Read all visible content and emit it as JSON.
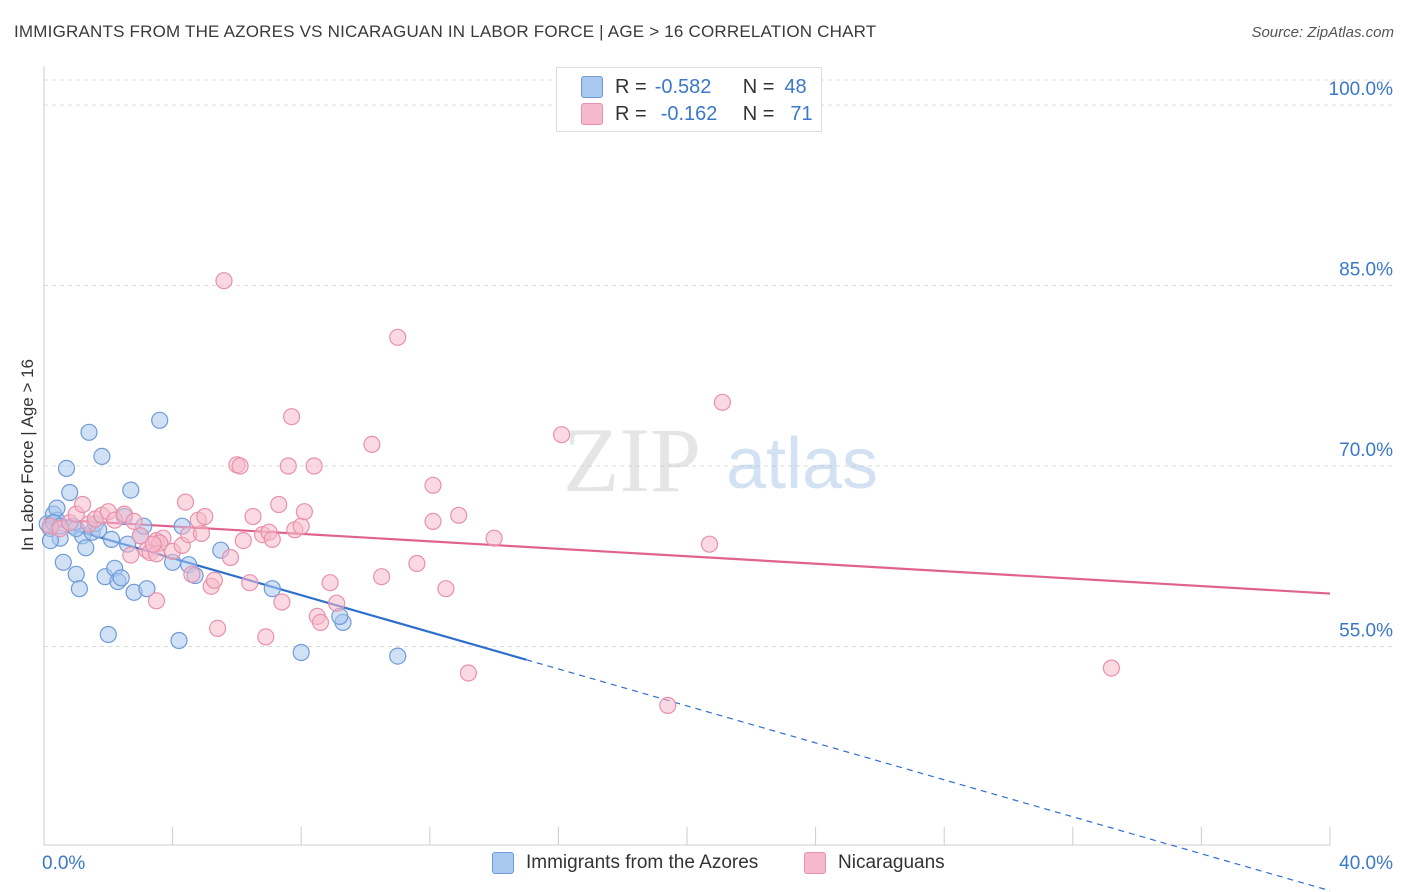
{
  "title": "IMMIGRANTS FROM THE AZORES VS NICARAGUAN IN LABOR FORCE | AGE > 16 CORRELATION CHART",
  "source": "Source: ZipAtlas.com",
  "watermark": {
    "zip": "ZIP",
    "atlas": "atlas"
  },
  "legend": {
    "rows": [
      {
        "r_label": "R =",
        "r_value": "-0.582",
        "n_label": "N =",
        "n_value": "48"
      },
      {
        "r_label": "R =",
        "r_value": "-0.162",
        "n_label": "N =",
        "n_value": "71"
      }
    ]
  },
  "bottom_legend": [
    "Immigrants from the Azores",
    "Nicaraguans"
  ],
  "colors": {
    "blue_fill": "#a9c8ef",
    "blue_stroke": "#6f9bd6",
    "blue_line": "#2f6fcc",
    "pink_fill": "#f6b9cb",
    "pink_stroke": "#e891ad",
    "pink_line": "#e0628e",
    "axis_label": "#3a78c9",
    "grid": "#d9d9d9"
  },
  "chart_data": {
    "type": "scatter",
    "title": "IMMIGRANTS FROM THE AZORES VS NICARAGUAN IN LABOR FORCE | AGE > 16 CORRELATION CHART",
    "xlabel": "",
    "ylabel": "In Labor Force | Age > 16",
    "xlim": [
      0,
      40
    ],
    "ylim": [
      38.5,
      102.5
    ],
    "x_tick_labels": [
      "0.0%",
      "40.0%"
    ],
    "y_ticks": [
      55,
      70,
      85,
      100
    ],
    "y_tick_labels": [
      "55.0%",
      "70.0%",
      "85.0%",
      "100.0%"
    ],
    "grid": true,
    "series": [
      {
        "name": "Immigrants from the Azores",
        "r": -0.582,
        "n": 48,
        "points": [
          [
            0.1,
            65.2
          ],
          [
            0.2,
            64.8
          ],
          [
            0.3,
            66.0
          ],
          [
            0.4,
            65.5
          ],
          [
            0.5,
            64.0
          ],
          [
            0.2,
            63.8
          ],
          [
            0.4,
            66.5
          ],
          [
            0.6,
            62.0
          ],
          [
            0.7,
            69.8
          ],
          [
            0.8,
            67.8
          ],
          [
            0.9,
            65.0
          ],
          [
            1.0,
            61.0
          ],
          [
            1.1,
            59.8
          ],
          [
            1.2,
            64.2
          ],
          [
            1.3,
            63.2
          ],
          [
            1.4,
            72.8
          ],
          [
            1.5,
            64.5
          ],
          [
            1.6,
            65.2
          ],
          [
            1.7,
            64.7
          ],
          [
            1.8,
            70.8
          ],
          [
            1.9,
            60.8
          ],
          [
            2.0,
            56.0
          ],
          [
            2.1,
            63.9
          ],
          [
            2.2,
            61.5
          ],
          [
            2.3,
            60.4
          ],
          [
            2.5,
            65.8
          ],
          [
            2.6,
            63.5
          ],
          [
            2.7,
            68.0
          ],
          [
            2.8,
            59.5
          ],
          [
            3.0,
            64.2
          ],
          [
            3.1,
            65.0
          ],
          [
            3.2,
            59.8
          ],
          [
            3.6,
            73.8
          ],
          [
            4.0,
            62.0
          ],
          [
            4.3,
            65.0
          ],
          [
            4.2,
            55.5
          ],
          [
            4.5,
            61.8
          ],
          [
            4.7,
            60.9
          ],
          [
            5.5,
            63.0
          ],
          [
            7.1,
            59.8
          ],
          [
            8.0,
            54.5
          ],
          [
            9.3,
            57.0
          ],
          [
            9.2,
            57.5
          ],
          [
            11.0,
            54.2
          ],
          [
            0.3,
            65.3
          ],
          [
            0.5,
            65.0
          ],
          [
            2.4,
            60.7
          ],
          [
            1.0,
            64.8
          ]
        ],
        "trend": {
          "x": [
            0,
            15
          ],
          "y": [
            65.4,
            53.9
          ]
        },
        "trend_dashed": {
          "x": [
            15,
            40
          ],
          "y": [
            53.9,
            34.7
          ]
        }
      },
      {
        "name": "Nicaraguans",
        "r": -0.162,
        "n": 71,
        "points": [
          [
            0.2,
            65.0
          ],
          [
            0.5,
            64.8
          ],
          [
            0.8,
            65.3
          ],
          [
            1.0,
            66.0
          ],
          [
            1.2,
            66.8
          ],
          [
            1.4,
            65.2
          ],
          [
            1.6,
            65.6
          ],
          [
            1.8,
            65.9
          ],
          [
            2.0,
            66.2
          ],
          [
            2.2,
            65.5
          ],
          [
            2.5,
            66.0
          ],
          [
            2.8,
            65.4
          ],
          [
            3.0,
            64.2
          ],
          [
            3.2,
            63.0
          ],
          [
            3.5,
            63.8
          ],
          [
            3.7,
            64.0
          ],
          [
            3.3,
            62.8
          ],
          [
            3.6,
            63.6
          ],
          [
            3.5,
            62.7
          ],
          [
            3.4,
            63.5
          ],
          [
            3.5,
            58.8
          ],
          [
            4.0,
            62.9
          ],
          [
            4.3,
            63.4
          ],
          [
            4.4,
            67.0
          ],
          [
            4.5,
            64.3
          ],
          [
            4.6,
            61.0
          ],
          [
            4.9,
            64.4
          ],
          [
            4.8,
            65.5
          ],
          [
            5.0,
            65.8
          ],
          [
            5.2,
            60.0
          ],
          [
            5.3,
            60.5
          ],
          [
            5.4,
            56.5
          ],
          [
            5.6,
            85.4
          ],
          [
            5.8,
            62.4
          ],
          [
            6.0,
            70.1
          ],
          [
            6.1,
            70.0
          ],
          [
            6.2,
            63.8
          ],
          [
            6.4,
            60.3
          ],
          [
            6.5,
            65.8
          ],
          [
            6.8,
            64.3
          ],
          [
            6.9,
            55.8
          ],
          [
            7.0,
            64.5
          ],
          [
            7.1,
            63.9
          ],
          [
            7.3,
            66.8
          ],
          [
            7.4,
            58.7
          ],
          [
            7.6,
            70.0
          ],
          [
            7.7,
            74.1
          ],
          [
            7.8,
            64.7
          ],
          [
            8.0,
            65.0
          ],
          [
            8.1,
            66.2
          ],
          [
            8.4,
            70.0
          ],
          [
            8.5,
            57.5
          ],
          [
            8.6,
            57.0
          ],
          [
            8.9,
            60.3
          ],
          [
            9.1,
            58.6
          ],
          [
            10.2,
            71.8
          ],
          [
            10.5,
            60.8
          ],
          [
            11.0,
            80.7
          ],
          [
            11.6,
            61.9
          ],
          [
            12.1,
            68.4
          ],
          [
            12.1,
            65.4
          ],
          [
            12.5,
            59.8
          ],
          [
            12.9,
            65.9
          ],
          [
            13.2,
            52.8
          ],
          [
            14.0,
            64.0
          ],
          [
            16.1,
            72.6
          ],
          [
            19.4,
            50.1
          ],
          [
            20.7,
            63.5
          ],
          [
            21.1,
            75.3
          ],
          [
            33.2,
            53.2
          ],
          [
            2.7,
            62.6
          ]
        ],
        "trend": {
          "x": [
            0,
            40
          ],
          "y": [
            65.6,
            59.4
          ]
        }
      }
    ]
  }
}
